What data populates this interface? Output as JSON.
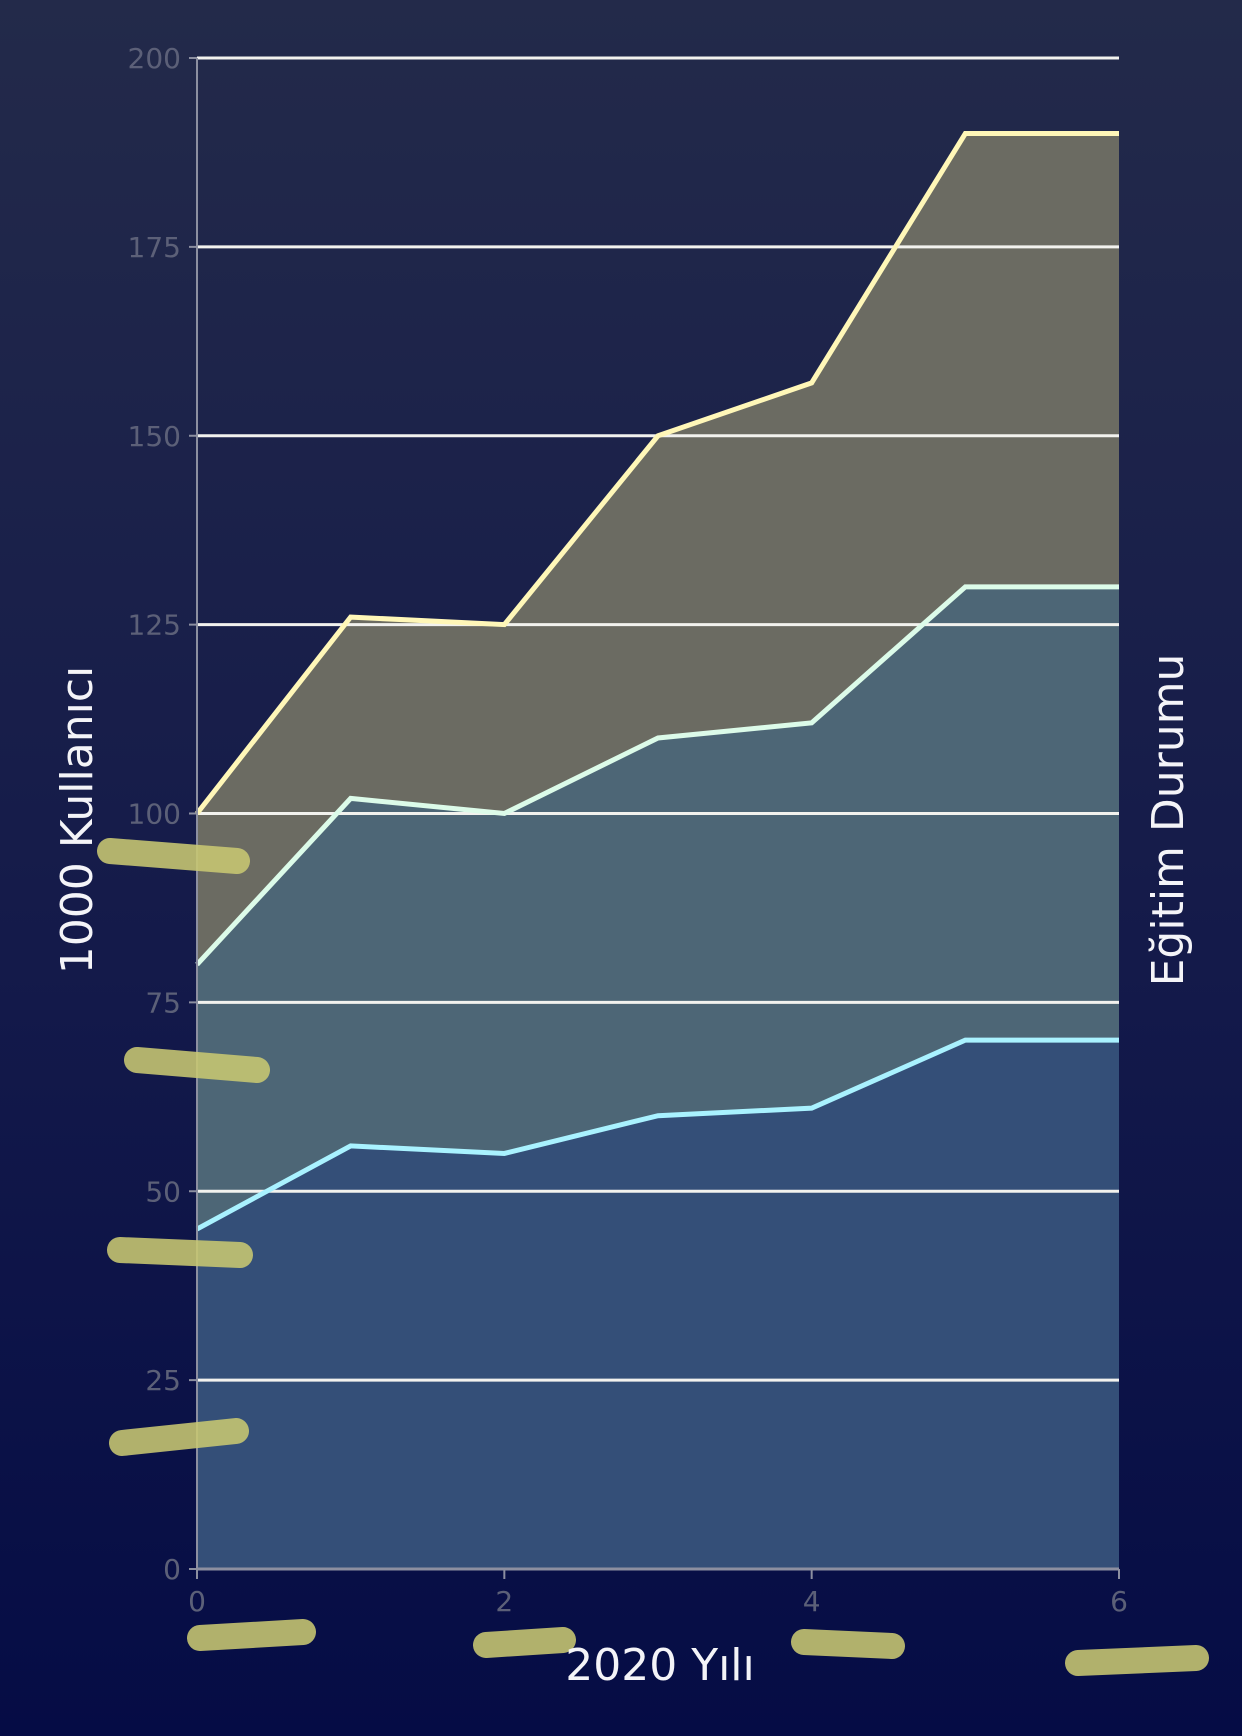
{
  "chart_data": {
    "type": "area",
    "title": "",
    "xlabel": "2020 Yılı",
    "ylabel": "1000 Kullanıcı",
    "ylabel_right": "Eğitim Durumu",
    "x": [
      0,
      1,
      2,
      3,
      4,
      5,
      6
    ],
    "xlim": [
      0,
      6
    ],
    "ylim": [
      0,
      200
    ],
    "x_ticks": [
      0,
      2,
      4,
      6
    ],
    "y_ticks": [
      0,
      25,
      50,
      75,
      100,
      125,
      150,
      175,
      200
    ],
    "grid": "horizontal",
    "stacked": false,
    "series": [
      {
        "values": [
          100,
          126,
          125,
          150,
          157,
          190,
          190
        ],
        "line_color": "#fff7b8",
        "fill_color": "#6b6b62"
      },
      {
        "values": [
          80,
          102,
          100,
          110,
          112,
          130,
          130
        ],
        "line_color": "#dcfbe9",
        "fill_color": "#4d6676"
      },
      {
        "values": [
          45,
          56,
          55,
          60,
          61,
          70,
          70
        ],
        "line_color": "#a9f2ff",
        "fill_color": "#344f78"
      }
    ],
    "grid_color": "#f2f2ee",
    "marker_color": "#c9c872"
  }
}
